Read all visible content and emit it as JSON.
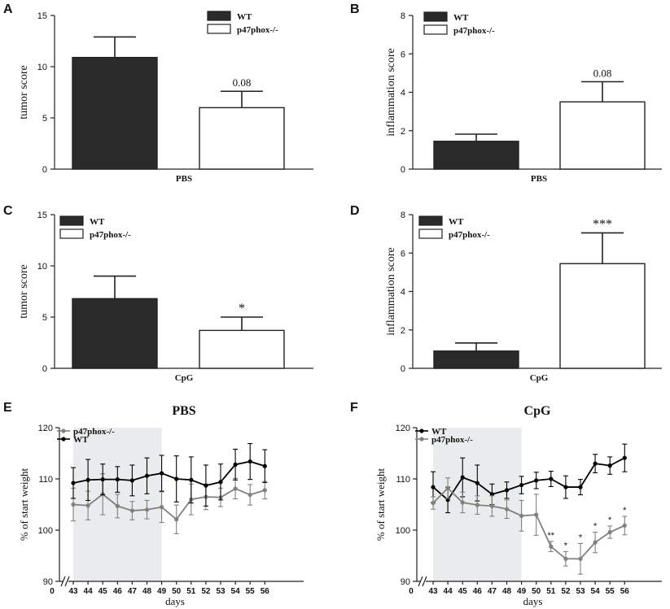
{
  "chart_data": [
    {
      "panel": "A",
      "type": "bar",
      "categories": [
        "WT",
        "p47phox-/-"
      ],
      "values": [
        10.9,
        6.0
      ],
      "errors": [
        2.0,
        1.6
      ],
      "annotations": [
        "",
        "0.08"
      ],
      "ylabel": "tumor score",
      "xlabel": "PBS",
      "ylim": [
        0,
        15
      ],
      "yticks": [
        0,
        5,
        10,
        15
      ],
      "legend": [
        "WT",
        "p47phox-/-"
      ]
    },
    {
      "panel": "B",
      "type": "bar",
      "categories": [
        "WT",
        "p47phox-/-"
      ],
      "values": [
        1.45,
        3.5
      ],
      "errors": [
        0.37,
        1.05
      ],
      "annotations": [
        "",
        "0.08"
      ],
      "ylabel": "inflammation score",
      "xlabel": "PBS",
      "ylim": [
        0,
        8
      ],
      "yticks": [
        0,
        2,
        4,
        6,
        8
      ],
      "legend": [
        "WT",
        "p47phox-/-"
      ]
    },
    {
      "panel": "C",
      "type": "bar",
      "categories": [
        "WT",
        "p47phox-/-"
      ],
      "values": [
        6.8,
        3.7
      ],
      "errors": [
        2.2,
        1.3
      ],
      "annotations": [
        "",
        "*"
      ],
      "ylabel": "tumor score",
      "xlabel": "CpG",
      "ylim": [
        0,
        15
      ],
      "yticks": [
        0,
        5,
        10,
        15
      ],
      "legend": [
        "WT",
        "p47phox-/-"
      ]
    },
    {
      "panel": "D",
      "type": "bar",
      "categories": [
        "WT",
        "p47phox-/-"
      ],
      "values": [
        0.9,
        5.45
      ],
      "errors": [
        0.42,
        1.6
      ],
      "annotations": [
        "",
        "***"
      ],
      "ylabel": "inflammation score",
      "xlabel": "CpG",
      "ylim": [
        0,
        8
      ],
      "yticks": [
        0,
        2,
        4,
        6,
        8
      ],
      "legend": [
        "WT",
        "p47phox-/-"
      ]
    },
    {
      "panel": "E",
      "type": "line",
      "title": "PBS",
      "x": [
        43,
        44,
        45,
        46,
        47,
        48,
        49,
        50,
        51,
        52,
        53,
        54,
        55,
        56
      ],
      "xticks": [
        "0",
        "43",
        "44",
        "45",
        "46",
        "47",
        "48",
        "49",
        "50",
        "51",
        "52",
        "53",
        "54",
        "55",
        "56"
      ],
      "series": [
        {
          "name": "p47phox-/-",
          "color": "#808080",
          "values": [
            105.0,
            104.8,
            107.0,
            104.7,
            103.8,
            104.0,
            104.5,
            102.1,
            106.0,
            106.5,
            106.4,
            108.1,
            106.9,
            107.8
          ],
          "errors": [
            3.2,
            2.8,
            4.0,
            2.3,
            1.8,
            1.8,
            3.0,
            2.8,
            3.0,
            2.5,
            1.8,
            2.0,
            2.0,
            1.7
          ]
        },
        {
          "name": "WT",
          "color": "#000000",
          "values": [
            109.2,
            109.8,
            109.9,
            109.9,
            109.7,
            110.6,
            111.1,
            110.0,
            109.8,
            108.7,
            109.4,
            112.8,
            113.4,
            112.5
          ],
          "errors": [
            3.0,
            4.0,
            3.0,
            2.5,
            3.0,
            3.5,
            3.5,
            4.5,
            4.5,
            4.0,
            3.5,
            3.0,
            3.5,
            3.2
          ]
        }
      ],
      "shaded_region": [
        43,
        49
      ],
      "ylabel": "% of start weight",
      "xlabel": "days",
      "ylim": [
        90,
        120
      ],
      "yticks": [
        90,
        100,
        110,
        120
      ]
    },
    {
      "panel": "F",
      "type": "line",
      "title": "CpG",
      "x": [
        43,
        44,
        45,
        46,
        47,
        48,
        49,
        50,
        51,
        52,
        53,
        54,
        55,
        56
      ],
      "xticks": [
        "0",
        "43",
        "44",
        "45",
        "46",
        "47",
        "48",
        "49",
        "50",
        "51",
        "52",
        "53",
        "54",
        "55",
        "56"
      ],
      "series": [
        {
          "name": "WT",
          "color": "#000000",
          "values": [
            108.4,
            105.9,
            110.3,
            109.2,
            107.0,
            107.8,
            108.8,
            109.7,
            110.0,
            108.4,
            108.4,
            113.0,
            112.6,
            114.1
          ],
          "errors": [
            3.0,
            2.5,
            3.8,
            3.5,
            2.0,
            1.6,
            1.7,
            1.6,
            1.5,
            2.2,
            1.5,
            1.8,
            1.7,
            2.7
          ]
        },
        {
          "name": "p47phox-/-",
          "color": "#808080",
          "values": [
            105.3,
            108.2,
            105.4,
            104.9,
            104.7,
            104.1,
            102.8,
            103.0,
            96.8,
            94.4,
            94.4,
            97.6,
            99.6,
            100.9
          ],
          "errors": [
            1.2,
            2.0,
            2.0,
            1.8,
            2.0,
            1.8,
            3.0,
            4.0,
            1.0,
            1.4,
            3.0,
            2.0,
            1.2,
            1.8
          ]
        }
      ],
      "significance": [
        "",
        "",
        "",
        "",
        "",
        "",
        "",
        "",
        "**",
        "*",
        "*",
        "*",
        "*",
        "*"
      ],
      "shaded_region": [
        43,
        49
      ],
      "ylabel": "% of start weight",
      "xlabel": "days",
      "ylim": [
        90,
        120
      ],
      "yticks": [
        90,
        100,
        110,
        120
      ]
    }
  ]
}
